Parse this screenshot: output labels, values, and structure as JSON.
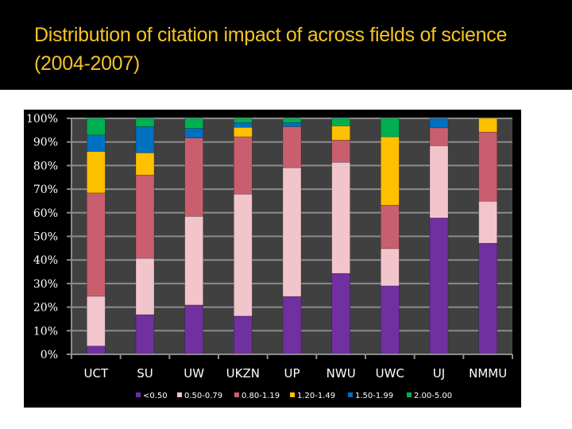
{
  "slide": {
    "title": "Distribution of citation impact of across fields of science (2004-2007)"
  },
  "colors": {
    "title_text": "#F5C326",
    "plot_background": "#404040",
    "gridline": "#8C8C8C",
    "frame_background": "#000000"
  },
  "chart_data": {
    "type": "bar",
    "stacked": true,
    "normalized": "100%",
    "title": "Distribution of citation impact of across fields of science (2004-2007)",
    "xlabel": "",
    "ylabel": "",
    "ylim": [
      0,
      100
    ],
    "yticks": [
      "0%",
      "10%",
      "20%",
      "30%",
      "40%",
      "50%",
      "60%",
      "70%",
      "80%",
      "90%",
      "100%"
    ],
    "grid": true,
    "legend_position": "bottom",
    "categories": [
      "UCT",
      "SU",
      "UW",
      "UKZN",
      "UP",
      "NWU",
      "UWC",
      "UJ",
      "NMMU"
    ],
    "series": [
      {
        "name": "<0.50",
        "color": "#7030A0",
        "values": [
          3.5,
          16.8,
          20.9,
          16.2,
          24.5,
          34.3,
          29.0,
          57.8,
          47.1
        ]
      },
      {
        "name": "0.50-0.79",
        "color": "#F2C4CC",
        "values": [
          21.1,
          23.9,
          37.6,
          51.7,
          54.6,
          47.1,
          15.8,
          30.6,
          17.8
        ]
      },
      {
        "name": "0.80-1.19",
        "color": "#C95F6E",
        "values": [
          43.8,
          35.3,
          33.2,
          24.3,
          17.4,
          9.4,
          18.4,
          7.6,
          29.3
        ]
      },
      {
        "name": "1.20-1.49",
        "color": "#FFC000",
        "values": [
          17.6,
          9.4,
          0,
          4.0,
          0,
          6.0,
          29.0,
          0,
          5.8
        ]
      },
      {
        "name": "1.50-1.99",
        "color": "#0070C0",
        "values": [
          7.0,
          11.1,
          4.1,
          2.0,
          1.7,
          0,
          0,
          4.0,
          0
        ]
      },
      {
        "name": "2.00-5.00",
        "color": "#00B050",
        "values": [
          7.0,
          3.5,
          4.2,
          1.8,
          1.8,
          3.2,
          7.8,
          0,
          0
        ]
      }
    ]
  }
}
